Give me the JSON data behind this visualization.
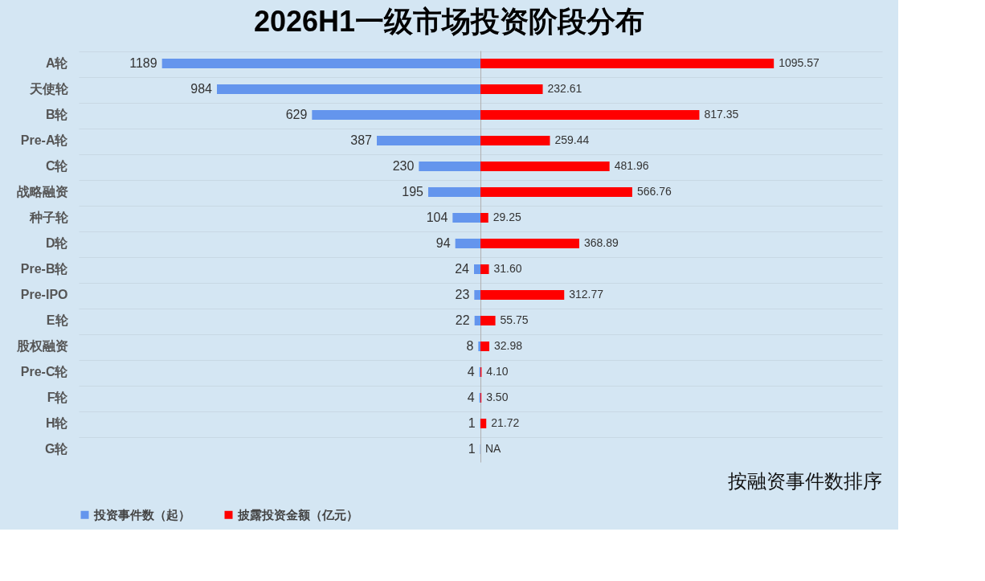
{
  "chart_data": [
    {
      "type": "bar",
      "orientation": "horizontal",
      "title": "2026H1一级市场投资阶段分布",
      "categories": [
        "A轮",
        "天使轮",
        "B轮",
        "Pre-A轮",
        "C轮",
        "战略融资",
        "种子轮",
        "D轮",
        "Pre-B轮",
        "Pre-IPO",
        "E轮",
        "股权融资",
        "Pre-C轮",
        "F轮",
        "H轮",
        "G轮"
      ],
      "series": [
        {
          "name": "投资事件数（起）",
          "color": "#6495ed",
          "values": [
            1189,
            984,
            629,
            387,
            230,
            195,
            104,
            94,
            24,
            23,
            22,
            8,
            4,
            4,
            1,
            1
          ]
        }
      ],
      "xlim": [
        1500,
        0
      ],
      "data_labels": true,
      "grid": "y",
      "legend": "bottom",
      "tick_labels": "y",
      "annotations": [
        "按融资事件数排序"
      ]
    },
    {
      "type": "bar",
      "orientation": "horizontal",
      "categories": [
        "A轮",
        "天使轮",
        "B轮",
        "Pre-A轮",
        "C轮",
        "战略融资",
        "种子轮",
        "D轮",
        "Pre-B轮",
        "Pre-IPO",
        "E轮",
        "股权融资",
        "Pre-C轮",
        "F轮",
        "H轮",
        "G轮"
      ],
      "series": [
        {
          "name": "披露投资金额（亿元）",
          "color": "#ff0000",
          "values": [
            1095.57,
            232.61,
            817.35,
            259.44,
            481.96,
            566.76,
            29.25,
            368.89,
            31.6,
            312.77,
            55.75,
            32.98,
            4.1,
            3.5,
            21.72,
            null
          ],
          "value_labels": [
            "1095.57",
            "232.61",
            "817.35",
            "259.44",
            "481.96",
            "566.76",
            "29.25",
            "368.89",
            "31.60",
            "312.77",
            "55.75",
            "32.98",
            "4.10",
            "3.50",
            "21.72",
            "NA"
          ]
        }
      ],
      "xlim": [
        0,
        1500
      ],
      "grid": "y",
      "tick_labels": false
    }
  ]
}
